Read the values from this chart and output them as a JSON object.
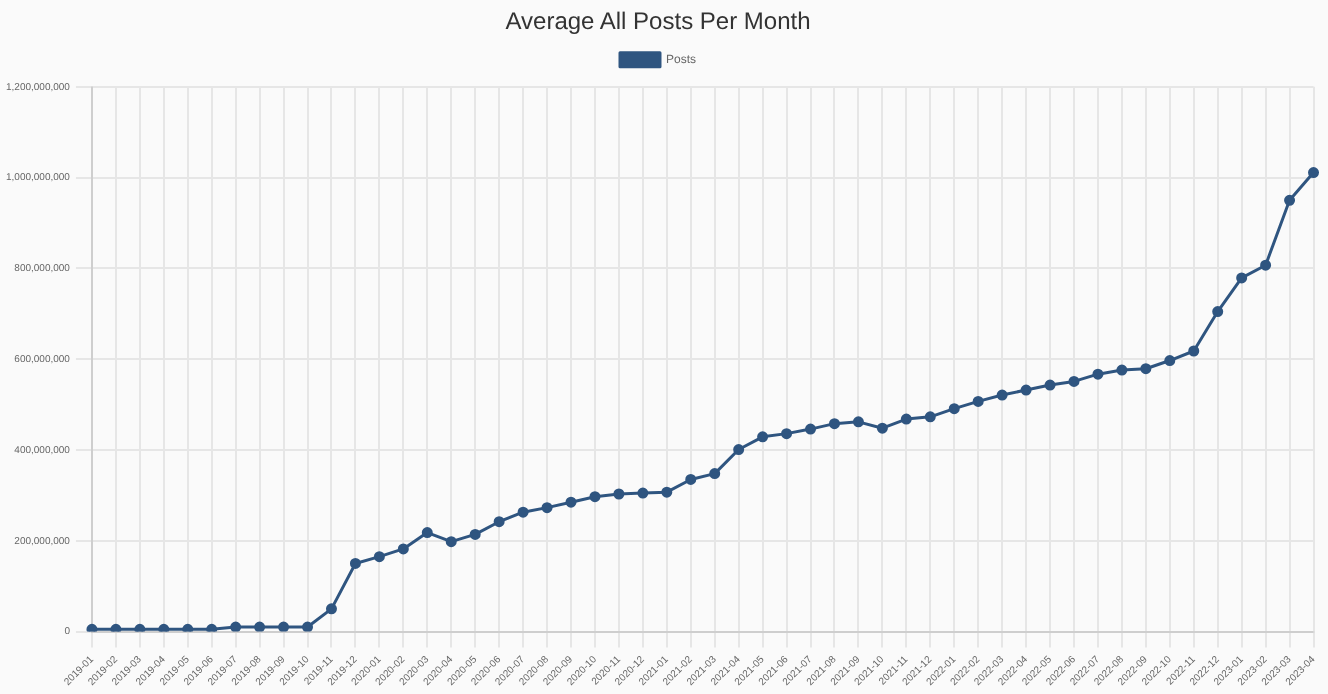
{
  "chart_data": {
    "type": "line",
    "title": "Average All Posts Per Month",
    "categories": [
      "2019-01",
      "2019-02",
      "2019-03",
      "2019-04",
      "2019-05",
      "2019-06",
      "2019-07",
      "2019-08",
      "2019-09",
      "2019-10",
      "2019-11",
      "2019-12",
      "2020-01",
      "2020-02",
      "2020-03",
      "2020-04",
      "2020-05",
      "2020-06",
      "2020-07",
      "2020-08",
      "2020-09",
      "2020-10",
      "2020-11",
      "2020-12",
      "2021-01",
      "2021-02",
      "2021-03",
      "2021-04",
      "2021-05",
      "2021-06",
      "2021-07",
      "2021-08",
      "2021-09",
      "2021-10",
      "2021-11",
      "2021-12",
      "2022-01",
      "2022-02",
      "2022-03",
      "2022-04",
      "2022-05",
      "2022-06",
      "2022-07",
      "2022-08",
      "2022-09",
      "2022-10",
      "2022-11",
      "2022-12",
      "2023-01",
      "2023-02",
      "2023-03",
      "2023-04"
    ],
    "series": [
      {
        "name": "Posts",
        "color": "#2f5580",
        "values": [
          5000000,
          5000000,
          5000000,
          5000000,
          5000000,
          5000000,
          10000000,
          10000000,
          10000000,
          10000000,
          50000000,
          150000000,
          165000000,
          182000000,
          218000000,
          198000000,
          214000000,
          242000000,
          263000000,
          273000000,
          285000000,
          297000000,
          303000000,
          305000000,
          307000000,
          335000000,
          348000000,
          401000000,
          429000000,
          436000000,
          446000000,
          458000000,
          462000000,
          448000000,
          468000000,
          473000000,
          491000000,
          507000000,
          521000000,
          532000000,
          543000000,
          551000000,
          567000000,
          576000000,
          579000000,
          597000000,
          618000000,
          705000000,
          779000000,
          807000000,
          950000000,
          1011000000
        ]
      }
    ],
    "ylim": [
      0,
      1200000000
    ],
    "yticks": [
      0,
      {
        "value": 200000000,
        "label": "200,000,000"
      },
      {
        "value": 400000000,
        "label": "400,000,000"
      },
      {
        "value": 600000000,
        "label": "600,000,000"
      },
      {
        "value": 800000000,
        "label": "800,000,000"
      },
      {
        "value": 1000000000,
        "label": "1,000,000,000"
      },
      {
        "value": 1200000000,
        "label": "1,200,000,000"
      }
    ],
    "grid": true,
    "legend": "top",
    "marker": "circle",
    "line_style": "solid"
  }
}
